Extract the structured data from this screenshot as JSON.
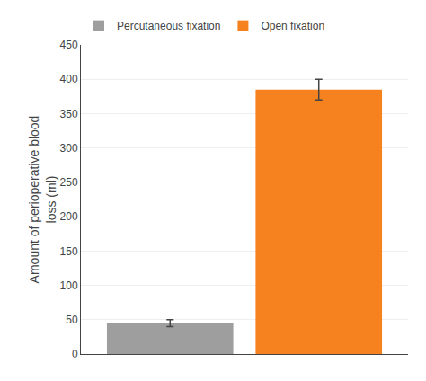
{
  "chart_data": {
    "type": "bar",
    "categories": [
      "Percutaneous fixation",
      "Open fixation"
    ],
    "values": [
      45,
      385
    ],
    "errors": [
      5,
      15
    ],
    "colors": [
      "#9e9e9e",
      "#f5821f"
    ],
    "ylabel": "Amount of perioperative blood\nloss (ml)",
    "ylim": [
      0,
      450
    ],
    "yticks": [
      0,
      50,
      100,
      150,
      200,
      250,
      300,
      350,
      400,
      450
    ],
    "grid": true,
    "legend": "top left",
    "tick_labels": "y"
  }
}
